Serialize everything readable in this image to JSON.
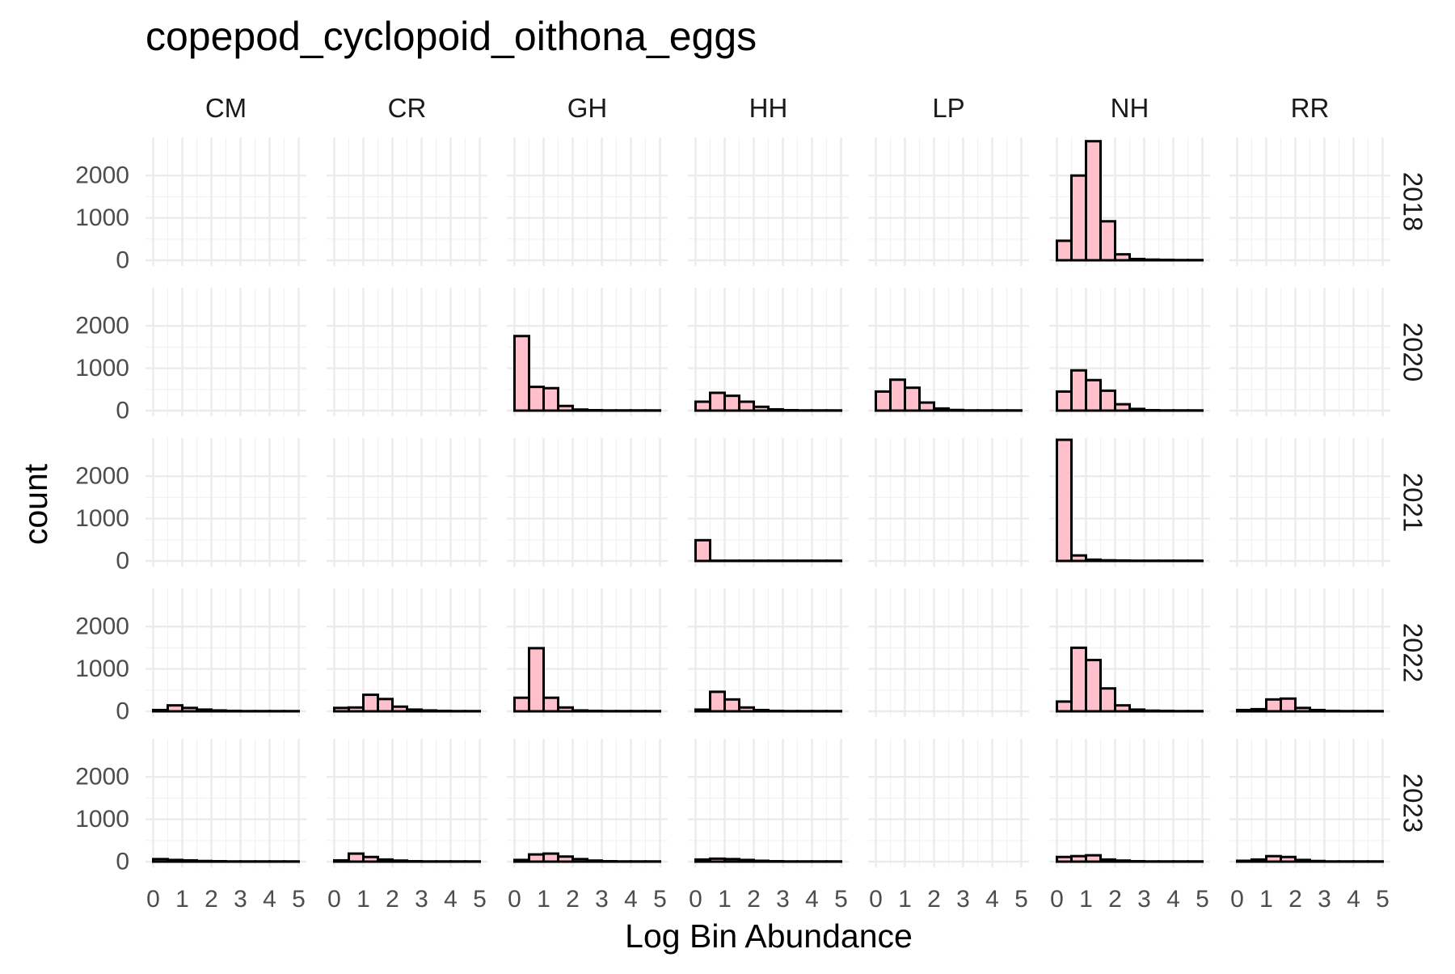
{
  "chart_data": {
    "type": "bar",
    "title": "copepod_cyclopoid_oithona_eggs",
    "xlabel": "Log Bin Abundance",
    "ylabel": "count",
    "xlim": [
      0,
      5
    ],
    "ylim": [
      0,
      2900
    ],
    "x_ticks": [
      "0",
      "1",
      "2",
      "3",
      "4",
      "5"
    ],
    "y_ticks": [
      "0",
      "1000",
      "2000"
    ],
    "grid": true,
    "bin_width": 0.5,
    "bin_starts": [
      0,
      0.5,
      1,
      1.5,
      2,
      2.5,
      3,
      3.5,
      4,
      4.5
    ],
    "sites": [
      "CM",
      "CR",
      "GH",
      "HH",
      "LP",
      "NH",
      "RR"
    ],
    "years": [
      "2018",
      "2020",
      "2021",
      "2022",
      "2023"
    ],
    "panels": [
      {
        "year": "2018",
        "site": "NH",
        "counts": [
          460,
          2000,
          2810,
          920,
          140,
          30,
          15,
          10,
          5,
          5
        ]
      },
      {
        "year": "2020",
        "site": "GH",
        "counts": [
          1760,
          560,
          530,
          110,
          25,
          10,
          5,
          5,
          5,
          5
        ]
      },
      {
        "year": "2020",
        "site": "HH",
        "counts": [
          210,
          420,
          350,
          210,
          90,
          30,
          10,
          5,
          5,
          5
        ]
      },
      {
        "year": "2020",
        "site": "LP",
        "counts": [
          450,
          730,
          540,
          190,
          50,
          15,
          5,
          5,
          5,
          5
        ]
      },
      {
        "year": "2020",
        "site": "NH",
        "counts": [
          450,
          950,
          720,
          470,
          150,
          40,
          10,
          5,
          5,
          5
        ]
      },
      {
        "year": "2021",
        "site": "HH",
        "counts": [
          490,
          5,
          5,
          5,
          5,
          5,
          5,
          5,
          5,
          5
        ]
      },
      {
        "year": "2021",
        "site": "NH",
        "counts": [
          2860,
          130,
          30,
          15,
          10,
          5,
          5,
          5,
          5,
          5
        ]
      },
      {
        "year": "2022",
        "site": "CM",
        "counts": [
          30,
          140,
          80,
          40,
          20,
          10,
          5,
          5,
          5,
          5
        ]
      },
      {
        "year": "2022",
        "site": "CR",
        "counts": [
          80,
          90,
          390,
          290,
          110,
          40,
          20,
          10,
          5,
          5
        ]
      },
      {
        "year": "2022",
        "site": "GH",
        "counts": [
          320,
          1490,
          320,
          90,
          20,
          10,
          5,
          5,
          5,
          5
        ]
      },
      {
        "year": "2022",
        "site": "HH",
        "counts": [
          40,
          460,
          280,
          90,
          30,
          10,
          5,
          5,
          5,
          5
        ]
      },
      {
        "year": "2022",
        "site": "NH",
        "counts": [
          230,
          1500,
          1210,
          540,
          140,
          40,
          15,
          10,
          5,
          5
        ]
      },
      {
        "year": "2022",
        "site": "RR",
        "counts": [
          30,
          50,
          280,
          300,
          80,
          30,
          10,
          5,
          5,
          5
        ]
      },
      {
        "year": "2023",
        "site": "CM",
        "counts": [
          60,
          40,
          30,
          15,
          10,
          5,
          5,
          5,
          5,
          5
        ]
      },
      {
        "year": "2023",
        "site": "CR",
        "counts": [
          30,
          190,
          110,
          50,
          25,
          10,
          5,
          5,
          5,
          5
        ]
      },
      {
        "year": "2023",
        "site": "GH",
        "counts": [
          40,
          170,
          190,
          120,
          60,
          25,
          10,
          5,
          5,
          5
        ]
      },
      {
        "year": "2023",
        "site": "HH",
        "counts": [
          50,
          70,
          60,
          40,
          20,
          10,
          5,
          5,
          5,
          5
        ]
      },
      {
        "year": "2023",
        "site": "NH",
        "counts": [
          110,
          130,
          150,
          50,
          25,
          10,
          5,
          5,
          5,
          5
        ]
      },
      {
        "year": "2023",
        "site": "RR",
        "counts": [
          20,
          50,
          130,
          110,
          40,
          15,
          5,
          5,
          5,
          5
        ]
      }
    ]
  }
}
